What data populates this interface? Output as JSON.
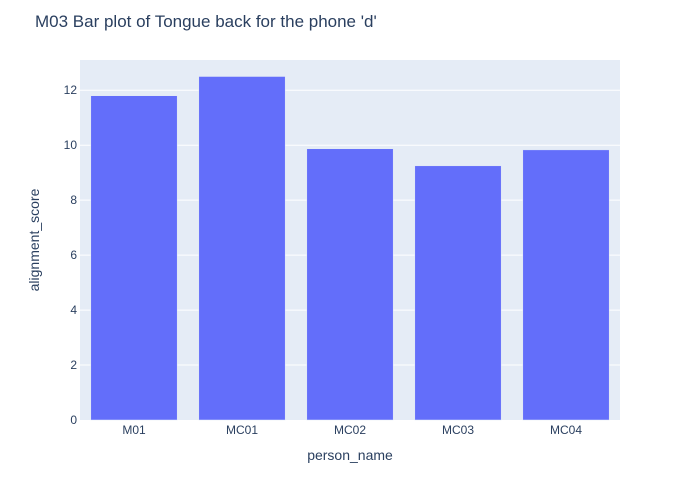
{
  "chart_data": {
    "type": "bar",
    "title": "M03 Bar plot of Tongue back for the phone 'd'",
    "xlabel": "person_name",
    "ylabel": "alignment_score",
    "categories": [
      "M01",
      "MC01",
      "MC02",
      "MC03",
      "MC04"
    ],
    "values": [
      11.8,
      12.5,
      9.87,
      9.25,
      9.83
    ],
    "ylim": [
      0,
      13.1
    ],
    "yticks": [
      0,
      2,
      4,
      6,
      8,
      10,
      12
    ],
    "grid": true,
    "colors": {
      "bar": "#636efa",
      "plot_background": "#e5ecf6",
      "grid": "#ffffff",
      "text": "#2a3f5f"
    }
  }
}
